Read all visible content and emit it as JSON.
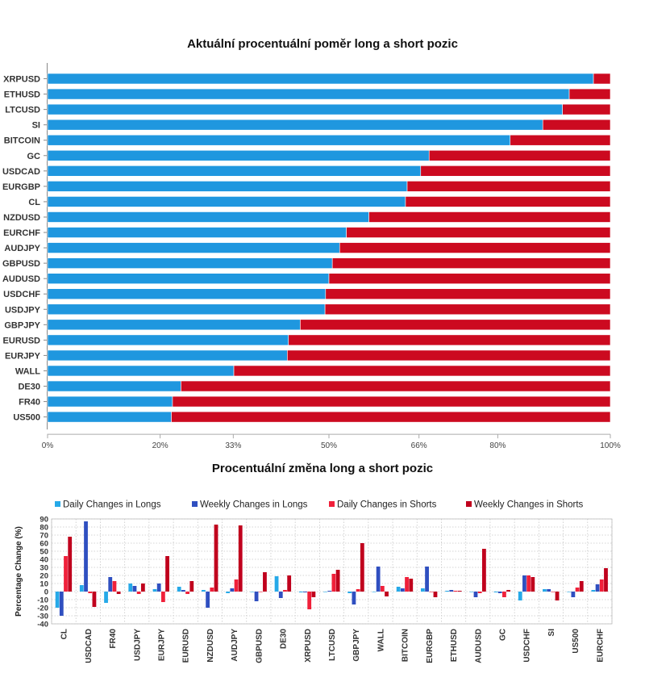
{
  "colors": {
    "long": "#1f97df",
    "short": "#cc0a20",
    "daily_longs": "#26a9e8",
    "weekly_longs": "#2f4fc0",
    "daily_shorts": "#f0203a",
    "weekly_shorts": "#c0001d"
  },
  "chart_data": [
    {
      "type": "bar",
      "orientation": "horizontal",
      "stacked": true,
      "title": "Aktuální procentuální poměr long a short pozic",
      "categories": [
        "XRPUSD",
        "ETHUSD",
        "LTCUSD",
        "SI",
        "BITCOIN",
        "GC",
        "USDCAD",
        "EURGBP",
        "CL",
        "NZDUSD",
        "EURCHF",
        "AUDJPY",
        "GBPUSD",
        "AUDUSD",
        "USDCHF",
        "USDJPY",
        "GBPJPY",
        "EURUSD",
        "EURJPY",
        "WALL",
        "DE30",
        "FR40",
        "US500"
      ],
      "series": [
        {
          "key": "long",
          "values": [
            97,
            92.7,
            91.5,
            88,
            82.2,
            67.8,
            66.3,
            63.9,
            63.6,
            57.1,
            53.1,
            51.9,
            50.6,
            50,
            49.4,
            49.3,
            44.9,
            42.8,
            42.6,
            33.1,
            23.7,
            22.2,
            22
          ]
        },
        {
          "key": "short",
          "values": [
            3,
            7.3,
            8.5,
            12,
            17.8,
            32.2,
            33.7,
            36.1,
            36.4,
            42.9,
            46.9,
            48.1,
            49.4,
            50,
            50.6,
            50.7,
            55.1,
            57.2,
            57.4,
            66.9,
            76.3,
            77.8,
            78
          ]
        }
      ],
      "xlim": [
        0,
        100
      ],
      "xticks": [
        "0%",
        "20%",
        "33%",
        "50%",
        "66%",
        "80%",
        "100%"
      ],
      "xtick_values": [
        0,
        20,
        33,
        50,
        66,
        80,
        100
      ]
    },
    {
      "type": "bar",
      "title": "Procentuální změna long a short pozic",
      "ylabel": "Percentage Change (%)",
      "ylim": [
        -40,
        90
      ],
      "yticks": [
        "90",
        "80",
        "70",
        "60",
        "50",
        "40",
        "30",
        "20",
        "10",
        "0",
        "-10",
        "-20",
        "-30",
        "-40"
      ],
      "ytick_values": [
        90,
        80,
        70,
        60,
        50,
        40,
        30,
        20,
        10,
        0,
        -10,
        -20,
        -30,
        -40
      ],
      "grid": true,
      "legend_position": "top",
      "categories": [
        "CL",
        "USDCAD",
        "FR40",
        "USDJPY",
        "EURJPY",
        "EURUSD",
        "NZDUSD",
        "AUDJPY",
        "GBPUSD",
        "DE30",
        "XRPUSD",
        "LTCUSD",
        "GBPJPY",
        "WALL",
        "BITCOIN",
        "EURGBP",
        "ETHUSD",
        "AUDUSD",
        "GC",
        "USDCHF",
        "SI",
        "US500",
        "EURCHF"
      ],
      "series": [
        {
          "name": "Daily Changes in Longs",
          "key": "daily_longs",
          "values": [
            -20,
            8,
            -14,
            10,
            3,
            6,
            2,
            -2,
            0,
            19,
            -1,
            0,
            -2,
            0,
            6,
            4,
            1,
            0,
            -1,
            -11,
            3,
            0,
            2
          ]
        },
        {
          "name": "Weekly Changes in Longs",
          "key": "weekly_longs",
          "values": [
            -30,
            87,
            18,
            7,
            10,
            2,
            -20,
            4,
            -12,
            -8,
            -1,
            1,
            -16,
            31,
            4,
            31,
            2,
            -7,
            -2,
            20,
            3,
            -7,
            9
          ]
        },
        {
          "name": "Daily Changes in Shorts",
          "key": "daily_shorts",
          "values": [
            44,
            -2,
            13,
            -3,
            -13,
            -3,
            5,
            15,
            0,
            2,
            -22,
            22,
            3,
            7,
            18,
            0,
            1,
            -2,
            -7,
            20,
            0,
            5,
            15
          ]
        },
        {
          "name": "Weekly Changes in Shorts",
          "key": "weekly_shorts",
          "values": [
            68,
            -19,
            -3,
            10,
            44,
            13,
            83,
            82,
            24,
            20,
            -7,
            27,
            60,
            -6,
            16,
            -7,
            1,
            53,
            2,
            18,
            -11,
            13,
            29
          ]
        }
      ]
    }
  ]
}
